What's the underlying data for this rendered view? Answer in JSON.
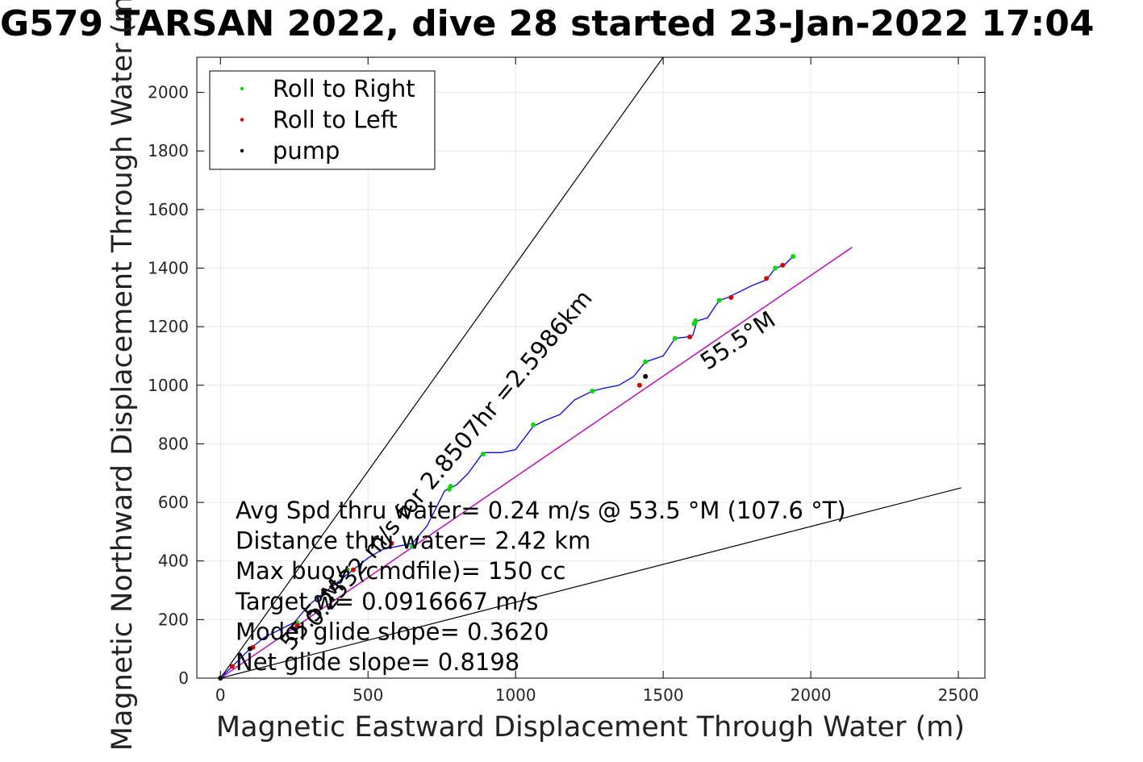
{
  "chart_data": {
    "type": "line",
    "title": "G579 TARSAN 2022, dive 28 started 23-Jan-2022 17:04",
    "xlabel": "Magnetic Eastward Displacement Through Water (m)",
    "ylabel": "Magnetic Northward Displacement Through Water (m)",
    "xlim": [
      -80,
      2590
    ],
    "ylim": [
      0,
      2120
    ],
    "xticks": [
      0,
      500,
      1000,
      1500,
      2000,
      2500
    ],
    "yticks": [
      0,
      200,
      400,
      600,
      800,
      1000,
      1200,
      1400,
      1600,
      1800,
      2000
    ],
    "grid": true,
    "legend": {
      "placement": "top-left",
      "entries": [
        {
          "label": "Roll to Right",
          "color": "#00dd00"
        },
        {
          "label": "Roll to Left",
          "color": "#dd0000"
        },
        {
          "label": "pump",
          "color": "#000000"
        }
      ]
    },
    "series": [
      {
        "color": "#0000ff",
        "x": [
          0,
          40,
          100,
          150,
          250,
          300,
          350,
          400,
          450,
          500,
          550,
          600,
          650,
          700,
          760,
          780,
          800,
          840,
          890,
          950,
          1000,
          1060,
          1100,
          1150,
          1200,
          1260,
          1300,
          1350,
          1400,
          1440,
          1470,
          1500,
          1540,
          1580,
          1600,
          1615,
          1650,
          1690,
          1720,
          1760,
          1800,
          1850,
          1880,
          1910,
          1940
        ],
        "y": [
          0,
          40,
          100,
          140,
          190,
          250,
          290,
          330,
          370,
          410,
          440,
          450,
          460,
          520,
          640,
          650,
          660,
          700,
          770,
          770,
          780,
          860,
          880,
          900,
          950,
          980,
          990,
          1000,
          1030,
          1080,
          1090,
          1100,
          1160,
          1165,
          1170,
          1220,
          1230,
          1290,
          1300,
          1320,
          1340,
          1360,
          1400,
          1410,
          1440
        ]
      },
      {
        "color": "#cc00cc",
        "x": [
          0,
          2140
        ],
        "y": [
          0,
          1471
        ]
      }
    ],
    "reference_lines": [
      {
        "color": "#000000",
        "x": [
          0,
          2140
        ],
        "y": [
          0,
          1471
        ]
      },
      {
        "color": "#000000",
        "x": [
          0,
          1500
        ],
        "y": [
          0,
          2120
        ]
      },
      {
        "color": "#000000",
        "x": [
          0,
          2510
        ],
        "y": [
          0,
          650
        ]
      }
    ],
    "markers": {
      "roll_right": {
        "color": "#00dd00",
        "x": [
          0,
          100,
          260,
          430,
          650,
          775,
          780,
          890,
          1060,
          1260,
          1440,
          1540,
          1605,
          1610,
          1690,
          1880,
          1940
        ],
        "y": [
          0,
          100,
          190,
          370,
          450,
          645,
          655,
          765,
          865,
          980,
          1080,
          1160,
          1210,
          1220,
          1290,
          1400,
          1440
        ]
      },
      "roll_left": {
        "color": "#dd0000",
        "x": [
          40,
          110,
          260,
          350,
          450,
          580,
          1420,
          1590,
          1730,
          1850,
          1905
        ],
        "y": [
          40,
          105,
          180,
          295,
          370,
          460,
          1000,
          1165,
          1300,
          1365,
          1410
        ]
      },
      "pump": {
        "color": "#000000",
        "x": [
          0,
          100,
          350,
          1440
        ],
        "y": [
          0,
          100,
          290,
          1030
        ]
      }
    },
    "annotations": [
      {
        "text": "0.2532 m/s for 2.8507hr =2.5986km",
        "x": 325,
        "y": 170,
        "angle": -50
      },
      {
        "text": "55.5°M",
        "x": 1650,
        "y": 1050,
        "angle": -34
      },
      {
        "text": "55.5°M",
        "x": 240,
        "y": 90,
        "angle": -50
      }
    ],
    "stats": [
      "Avg Spd thru water=  0.24 m/s @  53.5 °M (107.6 °T)",
      "Distance thru water=  2.42 km",
      "Max buoy (cmdfile)= 150 cc",
      "Target w= 0.0916667 m/s",
      "Model glide slope= 0.3620",
      "Net glide slope= 0.8198"
    ]
  }
}
